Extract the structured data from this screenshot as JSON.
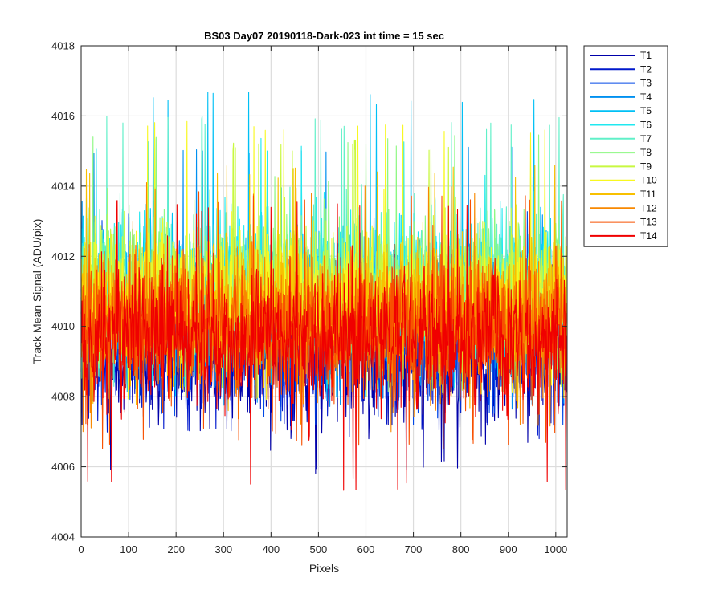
{
  "chart_data": {
    "type": "line",
    "title": "BS03 Day07 20190118-Dark-023 int time = 15 sec",
    "xlabel": "Pixels",
    "ylabel": "Track Mean Signal (ADU/pix)",
    "xlim": [
      0,
      1024
    ],
    "ylim": [
      4004,
      4018
    ],
    "xticks": [
      0,
      100,
      200,
      300,
      400,
      500,
      600,
      700,
      800,
      900,
      1000
    ],
    "yticks": [
      4004,
      4006,
      4008,
      4010,
      4012,
      4014,
      4016,
      4018
    ],
    "grid": true,
    "legend_position": "outside-top-right",
    "n_points": 1024,
    "series": [
      {
        "name": "T1",
        "color": "#0000aa",
        "mean": 4009.0,
        "noise": 0.85,
        "min": 4005.8,
        "max": 4012.0
      },
      {
        "name": "T2",
        "color": "#0018cc",
        "mean": 4009.4,
        "noise": 0.85,
        "min": 4006.8,
        "max": 4012.6
      },
      {
        "name": "T3",
        "color": "#0048e6",
        "mean": 4009.9,
        "noise": 0.9,
        "min": 4007.2,
        "max": 4013.3
      },
      {
        "name": "T4",
        "color": "#0090f0",
        "mean": 4010.4,
        "noise": 0.9,
        "min": 4007.6,
        "max": 4015.3
      },
      {
        "name": "T5",
        "color": "#00c0f5",
        "mean": 4010.9,
        "noise": 0.95,
        "min": 4008.0,
        "max": 4016.7
      },
      {
        "name": "T6",
        "color": "#20e8f0",
        "mean": 4011.2,
        "noise": 0.95,
        "min": 4008.2,
        "max": 4015.4
      },
      {
        "name": "T7",
        "color": "#60f0c8",
        "mean": 4011.1,
        "noise": 0.95,
        "min": 4008.2,
        "max": 4016.0
      },
      {
        "name": "T8",
        "color": "#8cf880",
        "mean": 4011.0,
        "noise": 0.95,
        "min": 4008.0,
        "max": 4015.5
      },
      {
        "name": "T9",
        "color": "#c8f840",
        "mean": 4010.9,
        "noise": 0.95,
        "min": 4008.0,
        "max": 4015.4
      },
      {
        "name": "T10",
        "color": "#f8f820",
        "mean": 4010.7,
        "noise": 0.95,
        "min": 4007.8,
        "max": 4015.9
      },
      {
        "name": "T11",
        "color": "#f8c000",
        "mean": 4010.4,
        "noise": 0.95,
        "min": 4007.6,
        "max": 4014.6
      },
      {
        "name": "T12",
        "color": "#f88800",
        "mean": 4010.1,
        "noise": 0.95,
        "min": 4007.0,
        "max": 4014.1
      },
      {
        "name": "T13",
        "color": "#f85000",
        "mean": 4009.9,
        "noise": 0.95,
        "min": 4006.5,
        "max": 4013.9
      },
      {
        "name": "T14",
        "color": "#f00000",
        "mean": 4009.6,
        "noise": 0.95,
        "min": 4005.3,
        "max": 4013.6
      }
    ]
  }
}
